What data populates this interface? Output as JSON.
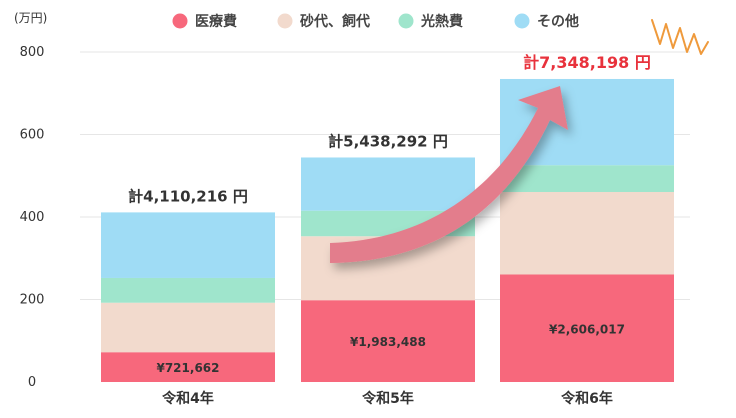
{
  "chart_data": {
    "type": "bar",
    "stacked": true,
    "y_unit": "(万円)",
    "ylim": [
      0,
      800
    ],
    "yticks": [
      "0",
      "200",
      "400",
      "600",
      "800"
    ],
    "grid": true,
    "legend_position": "top",
    "categories": [
      "令和4年",
      "令和5年",
      "令和6年"
    ],
    "series": [
      {
        "name": "医療費",
        "color": "#f7687c",
        "values": [
          72.2,
          198.3,
          260.6
        ]
      },
      {
        "name": "砂代、飼代",
        "color": "#f2dacd",
        "values": [
          120,
          155,
          200
        ]
      },
      {
        "name": "光熱費",
        "color": "#9fe5cc",
        "values": [
          60,
          62,
          65
        ]
      },
      {
        "name": "その他",
        "color": "#9fdcf5",
        "values": [
          159,
          129,
          209
        ]
      }
    ],
    "segment_labels": [
      "¥721,662",
      "¥1,983,488",
      "¥2,606,017"
    ],
    "totals": [
      "計4,110,216 円",
      "計5,438,292 円",
      "計7,348,198 円"
    ],
    "highlight_color": "#e8323c",
    "arrow_color": "#e37d8c"
  }
}
